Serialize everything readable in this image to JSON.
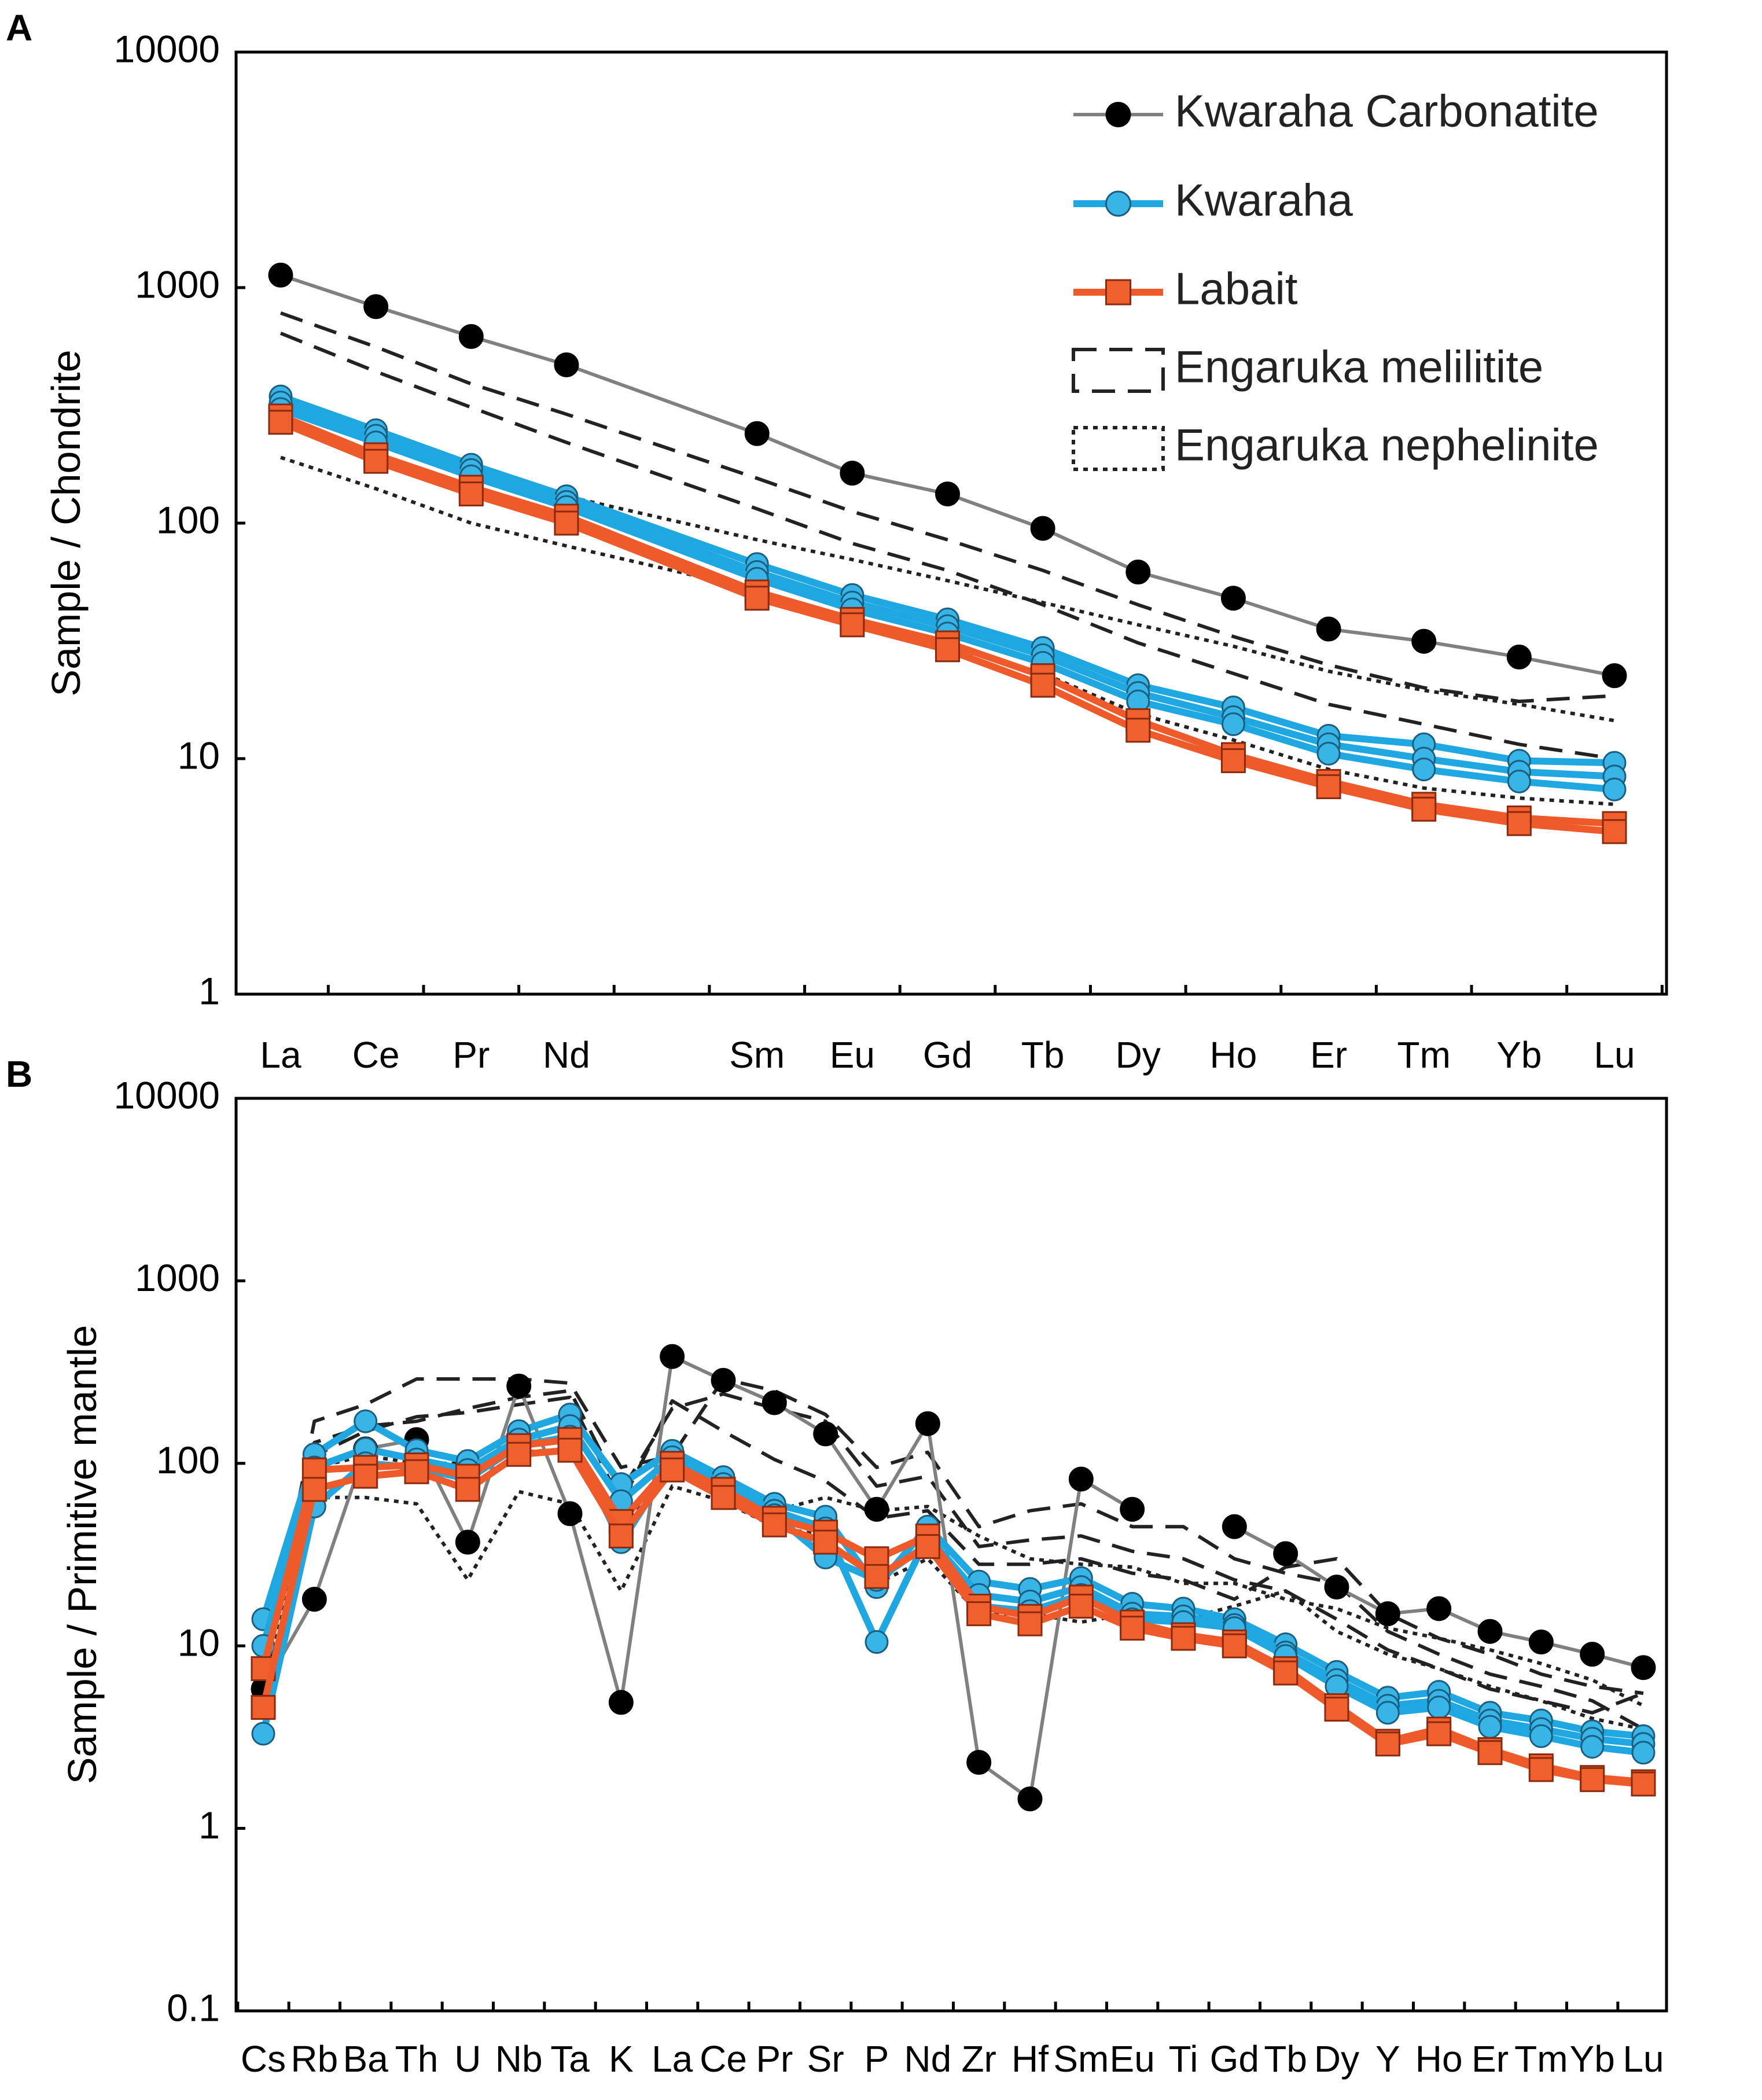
{
  "chart_data": [
    {
      "panel": "A",
      "type": "line",
      "scale": "log",
      "ylabel": "Sample / Chondrite",
      "ylim": [
        1,
        10000
      ],
      "yticks": [
        1,
        10,
        100,
        1000,
        10000
      ],
      "ytick_labels": [
        "1",
        "10",
        "100",
        "1000",
        "10000"
      ],
      "categories": [
        "La",
        "Ce",
        "Pr",
        "Nd",
        "Sm",
        "Eu",
        "Gd",
        "Tb",
        "Dy",
        "Ho",
        "Er",
        "Tm",
        "Yb",
        "Lu"
      ],
      "category_slots": [
        0,
        1,
        2,
        3,
        5,
        6,
        7,
        8,
        9,
        10,
        11,
        12,
        13,
        14
      ],
      "legend": [
        {
          "label": "Kwaraha Carbonatite",
          "style": "black-circle"
        },
        {
          "label": "Kwaraha",
          "style": "blue-circle"
        },
        {
          "label": "Labait",
          "style": "orange-square"
        },
        {
          "label": "Engaruka melilitite",
          "style": "dashed-box"
        },
        {
          "label": "Engaruka nephelinite",
          "style": "dotted-box"
        }
      ],
      "series": [
        {
          "name": "Kwaraha Carbonatite",
          "style": "carbonatite",
          "values": [
            1130,
            830,
            620,
            470,
            240,
            163,
            133,
            95,
            62,
            48,
            35.5,
            31.5,
            27,
            22.5
          ]
        },
        {
          "name": "Kwaraha",
          "style": "kwaraha",
          "values": [
            345,
            248,
            177,
            130,
            67,
            49.5,
            39,
            29.5,
            20.5,
            16.5,
            12.5,
            11.5,
            9.8,
            9.6
          ]
        },
        {
          "name": "Kwaraha",
          "style": "kwaraha",
          "values": [
            325,
            235,
            168,
            123,
            62,
            46,
            36.5,
            27.5,
            19,
            15,
            11.5,
            10,
            8.8,
            8.4
          ]
        },
        {
          "name": "Kwaraha",
          "style": "kwaraha",
          "values": [
            305,
            220,
            158,
            117,
            58,
            43,
            34,
            25.5,
            17.5,
            14,
            10.5,
            9,
            8,
            7.4
          ]
        },
        {
          "name": "Labait",
          "style": "labait",
          "values": [
            285,
            195,
            142,
            107,
            51,
            39,
            31,
            22.5,
            14.5,
            10.4,
            8,
            6.4,
            5.6,
            5.3
          ]
        },
        {
          "name": "Labait",
          "style": "labait",
          "values": [
            268,
            183,
            133,
            100,
            48,
            37,
            29,
            20.5,
            13.2,
            9.8,
            7.6,
            6.1,
            5.3,
            4.9
          ]
        },
        {
          "name": "Engaruka melilitite",
          "style": "melilitite",
          "values": [
            780,
            560,
            390,
            290,
            155,
            112,
            85,
            63,
            45,
            33,
            25,
            20,
            17.5,
            18.5
          ]
        },
        {
          "name": "Engaruka melilitite",
          "style": "melilitite",
          "values": [
            640,
            440,
            310,
            220,
            115,
            82,
            63,
            45,
            31,
            23,
            17,
            14,
            11.5,
            10
          ]
        },
        {
          "name": "Engaruka nephelinite",
          "style": "nephelinite",
          "values": [
            320,
            230,
            165,
            130,
            85,
            70,
            57,
            46,
            37,
            30,
            23.5,
            19.5,
            17,
            14.5
          ]
        },
        {
          "name": "Engaruka nephelinite",
          "style": "nephelinite",
          "values": [
            190,
            140,
            100,
            80,
            52,
            38,
            30,
            23,
            15.5,
            12,
            9,
            7.5,
            6.8,
            6.4
          ]
        }
      ]
    },
    {
      "panel": "B",
      "type": "line",
      "scale": "log",
      "ylabel": "Sample / Primitive mantle",
      "ylim": [
        0.1,
        10000
      ],
      "yticks": [
        0.1,
        1,
        10,
        100,
        1000,
        10000
      ],
      "ytick_labels": [
        "0.1",
        "1",
        "10",
        "100",
        "1000",
        "10000"
      ],
      "categories": [
        "Cs",
        "Rb",
        "Ba",
        "Th",
        "U",
        "Nb",
        "Ta",
        "K",
        "La",
        "Ce",
        "Pr",
        "Sr",
        "P",
        "Nd",
        "Zr",
        "Hf",
        "Sm",
        "Eu",
        "Ti",
        "Gd",
        "Tb",
        "Dy",
        "Y",
        "Ho",
        "Er",
        "Tm",
        "Yb",
        "Lu"
      ],
      "series": [
        {
          "name": "Kwaraha Carbonatite",
          "style": "carbonatite",
          "values": [
            5.8,
            18,
            120,
            135,
            37,
            265,
            53,
            4.9,
            385,
            285,
            215,
            145,
            56,
            165,
            2.3,
            1.45,
            82,
            56,
            null,
            45,
            32,
            21,
            15,
            16,
            12,
            10.5,
            9,
            7.6
          ]
        },
        {
          "name": "Kwaraha",
          "style": "kwaraha",
          "values": [
            14,
            112,
            170,
            118,
            103,
            150,
            185,
            77,
            117,
            84,
            60,
            51,
            21,
            45,
            22.5,
            20.5,
            23.5,
            17,
            16,
            14,
            10.2,
            7.2,
            5.2,
            5.6,
            4.3,
            3.9,
            3.4,
            3.2
          ]
        },
        {
          "name": "Kwaraha",
          "style": "kwaraha",
          "values": [
            10,
            95,
            120,
            105,
            92,
            135,
            160,
            62,
            108,
            77,
            55,
            44,
            10.5,
            40,
            19,
            17.5,
            21,
            15,
            14.5,
            13,
            9.2,
            6.5,
            4.7,
            5,
            3.9,
            3.5,
            3.1,
            2.9
          ]
        },
        {
          "name": "Kwaraha",
          "style": "kwaraha",
          "values": [
            3.3,
            58,
            100,
            95,
            82,
            125,
            140,
            37,
            100,
            72,
            52,
            30.5,
            23,
            36,
            16.5,
            15.5,
            19,
            14,
            13.5,
            12.5,
            8.8,
            6,
            4.3,
            4.6,
            3.6,
            3.2,
            2.8,
            2.6
          ]
        },
        {
          "name": "Labait",
          "style": "labait",
          "values": [
            7.5,
            92,
            95,
            98,
            85,
            125,
            135,
            48,
            100,
            72,
            50,
            42,
            30,
            40,
            16.5,
            14.5,
            18.5,
            13.5,
            11.5,
            10.5,
            7.5,
            4.7,
            3,
            3.5,
            2.7,
            2.2,
            1.9,
            1.8
          ]
        },
        {
          "name": "Labait",
          "style": "labait",
          "values": [
            4.6,
            72,
            85,
            90,
            72,
            112,
            118,
            40,
            92,
            65,
            46,
            37,
            24,
            35,
            15,
            13.2,
            16.5,
            12.5,
            11,
            10,
            7.1,
            4.5,
            2.9,
            3.3,
            2.6,
            2.1,
            1.85,
            1.75
          ]
        },
        {
          "name": "Engaruka melilitite",
          "style": "melilitite",
          "values": [
            6.5,
            170,
            210,
            290,
            290,
            290,
            275,
            95,
            110,
            290,
            250,
            185,
            95,
            115,
            45,
            55,
            60,
            45,
            45,
            30,
            25,
            22,
            12,
            9,
            7,
            6,
            5,
            3.5
          ]
        },
        {
          "name": "Engaruka melilitite",
          "style": "melilitite",
          "values": [
            7.5,
            130,
            160,
            170,
            200,
            230,
            250,
            70,
            200,
            240,
            200,
            170,
            75,
            85,
            35,
            38,
            40,
            33,
            30,
            23,
            20,
            14,
            9.5,
            7.5,
            5.8,
            5,
            4.3,
            5.5
          ]
        },
        {
          "name": "Engaruka melilitite",
          "style": "melilitite",
          "values": [
            7,
            110,
            150,
            180,
            190,
            210,
            230,
            60,
            220,
            150,
            105,
            80,
            50,
            55,
            28,
            28,
            30,
            25,
            23,
            18,
            27,
            30,
            15,
            11,
            9,
            7,
            6,
            5.5
          ]
        },
        {
          "name": "Engaruka nephelinite",
          "style": "nephelinite",
          "values": [
            6,
            95,
            110,
            100,
            100,
            115,
            120,
            45,
            90,
            75,
            55,
            65,
            55,
            58,
            40,
            30,
            28,
            27,
            22,
            22,
            18,
            16,
            12.5,
            11,
            9.5,
            8,
            6.5,
            4.7
          ]
        },
        {
          "name": "Engaruka nephelinite",
          "style": "nephelinite",
          "values": [
            6,
            65,
            65,
            60,
            23,
            70,
            60,
            20,
            75,
            62,
            45,
            40,
            22,
            30,
            15,
            15,
            13.5,
            15,
            14,
            16.5,
            20,
            12,
            9,
            7.5,
            6,
            5,
            4,
            3.5
          ]
        }
      ]
    }
  ]
}
